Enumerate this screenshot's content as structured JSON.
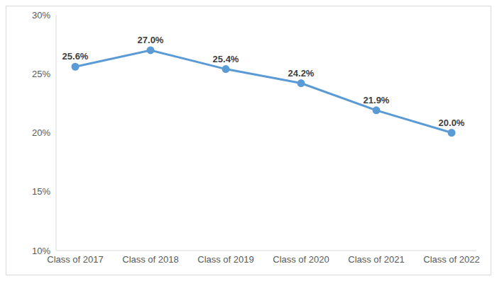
{
  "chart_data": {
    "type": "line",
    "categories": [
      "Class of 2017",
      "Class of 2018",
      "Class of 2019",
      "Class of 2020",
      "Class of 2021",
      "Class of 2022"
    ],
    "values": [
      25.6,
      27.0,
      25.4,
      24.2,
      21.9,
      20.0
    ],
    "value_labels": [
      "25.6%",
      "27.0%",
      "25.4%",
      "24.2%",
      "21.9%",
      "20.0%"
    ],
    "data_labels": true,
    "color": "#5b9bd5",
    "marker": "circle",
    "ylim": [
      10,
      30
    ],
    "yticks": [
      {
        "value": 10,
        "label": "10%"
      },
      {
        "value": 15,
        "label": "15%"
      },
      {
        "value": 20,
        "label": "20%"
      },
      {
        "value": 25,
        "label": "25%"
      },
      {
        "value": 30,
        "label": "30%"
      }
    ],
    "grid": false
  }
}
